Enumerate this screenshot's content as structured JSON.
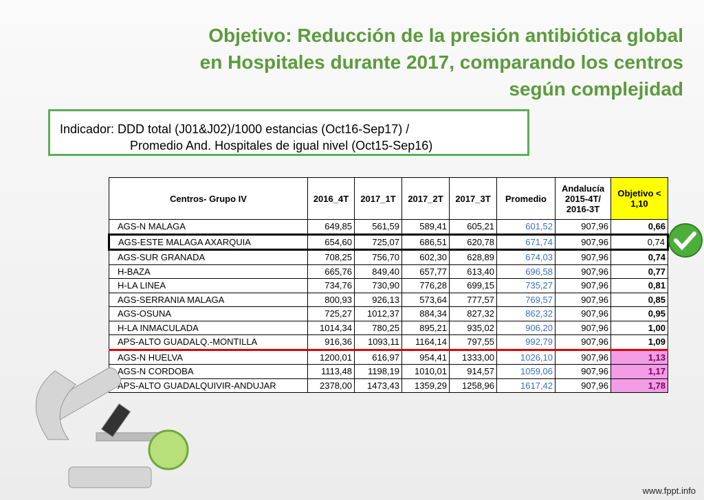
{
  "header": {
    "title_lines": [
      "Objetivo:  Reducción de la presión antibiótica global",
      "en Hospitales durante 2017, comparando los centros",
      "según complejidad"
    ]
  },
  "indicator": {
    "lines": [
      "Indicador: DDD total (J01&J02)/1000 estancias (Oct16-Sep17) /",
      "Promedio And. Hospitales de igual nivel (Oct15-Sep16)"
    ]
  },
  "table": {
    "headers": [
      "Centros- Grupo IV",
      "2016_4T",
      "2017_1T",
      "2017_2T",
      "2017_3T",
      "Promedio",
      "Andalucía 2015-4T/ 2016-3T",
      "Objetivo < 1,10"
    ],
    "rows": [
      [
        "AGS-N MALAGA",
        "649,85",
        "561,59",
        "589,41",
        "605,21",
        "601,52",
        "907,96",
        "0,66"
      ],
      [
        "AGS-ESTE MALAGA AXARQUIA",
        "654,60",
        "725,07",
        "686,51",
        "620,78",
        "671,74",
        "907,96",
        "0,74"
      ],
      [
        "AGS-SUR GRANADA",
        "708,25",
        "756,70",
        "602,30",
        "628,89",
        "674,03",
        "907,96",
        "0,74"
      ],
      [
        "H-BAZA",
        "665,76",
        "849,40",
        "657,77",
        "613,40",
        "696,58",
        "907,96",
        "0,77"
      ],
      [
        "H-LA LINEA",
        "734,76",
        "730,90",
        "776,28",
        "699,15",
        "735,27",
        "907,96",
        "0,81"
      ],
      [
        "AGS-SERRANIA MALAGA",
        "800,93",
        "926,13",
        "573,64",
        "777,57",
        "769,57",
        "907,96",
        "0,85"
      ],
      [
        "AGS-OSUNA",
        "725,27",
        "1012,37",
        "884,34",
        "827,32",
        "862,32",
        "907,96",
        "0,95"
      ],
      [
        "H-LA INMACULADA",
        "1014,34",
        "780,25",
        "895,21",
        "935,02",
        "906,20",
        "907,96",
        "1,00"
      ],
      [
        "APS-ALTO GUADALQ.-MONTILLA",
        "916,36",
        "1093,11",
        "1164,14",
        "797,55",
        "992,79",
        "907,96",
        "1,09"
      ],
      [
        "AGS-N HUELVA",
        "1200,01",
        "616,97",
        "954,41",
        "1333,00",
        "1026,10",
        "907,96",
        "1,13"
      ],
      [
        "AGS-N CORDOBA",
        "1113,48",
        "1198,19",
        "1010,01",
        "914,57",
        "1059,06",
        "907,96",
        "1,17"
      ],
      [
        "APS-ALTO GUADALQUIVIR-ANDUJAR",
        "2378,00",
        "1473,43",
        "1359,29",
        "1258,96",
        "1617,42",
        "907,96",
        "1,78"
      ]
    ]
  },
  "footer": {
    "site": "www.fppt.info"
  }
}
